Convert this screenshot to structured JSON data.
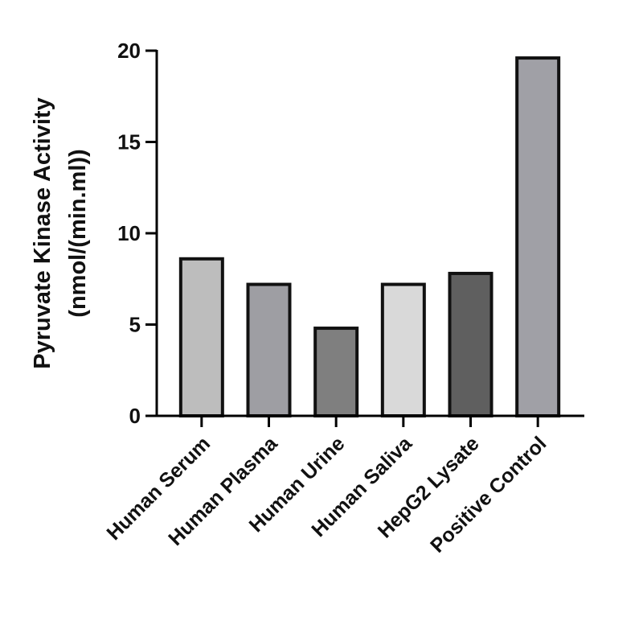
{
  "chart_data": {
    "type": "bar",
    "y_label": [
      "Pyruvate Kinase Activity",
      "(nmol/(min.ml))"
    ],
    "categories": [
      "Human Serum",
      "Human Plasma",
      "Human Urine",
      "Human Saliva",
      "HepG2 Lysate",
      "Positive Control"
    ],
    "values": [
      8.6,
      7.2,
      4.8,
      7.2,
      7.8,
      19.6
    ],
    "colors": [
      "#bdbdbd",
      "#9e9ea3",
      "#7f7f7f",
      "#d9d9d9",
      "#5f5f5f",
      "#a0a0a6"
    ],
    "ylim": [
      0,
      20
    ],
    "yticks": [
      0,
      5,
      10,
      15,
      20
    ],
    "grid": false
  }
}
